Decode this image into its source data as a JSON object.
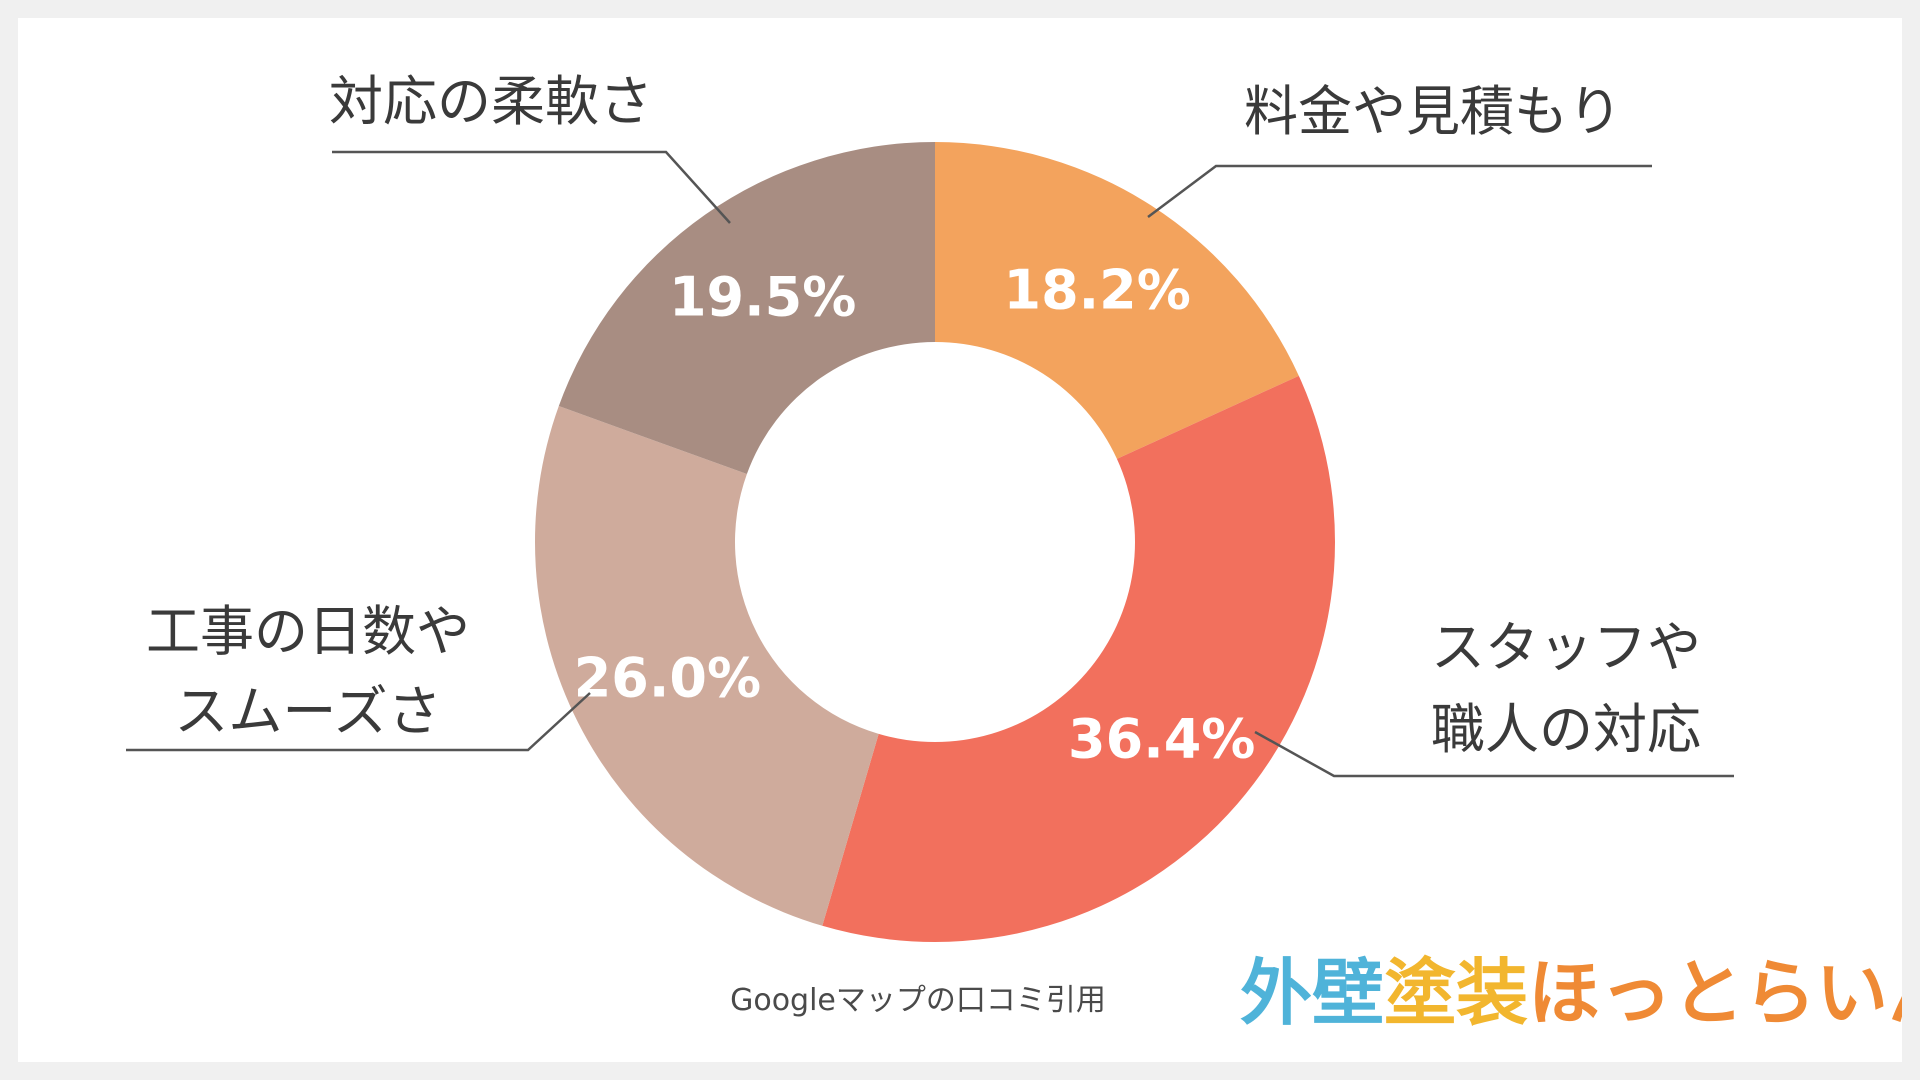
{
  "chart_data": {
    "type": "pie",
    "variant": "donut",
    "categories": [
      "料金や見積もり",
      "スタッフや職人の対応",
      "工事の日数やスムーズさ",
      "対応の柔軟さ"
    ],
    "label_lines": [
      [
        "料金や見積もり"
      ],
      [
        "スタッフや",
        "職人の対応"
      ],
      [
        "工事の日数や",
        "スムーズさ"
      ],
      [
        "対応の柔軟さ"
      ]
    ],
    "values": [
      18.2,
      36.4,
      26.0,
      19.5
    ],
    "value_labels": [
      "18.2%",
      "36.4%",
      "26.0%",
      "19.5%"
    ],
    "colors": [
      "#f3a35d",
      "#f2705d",
      "#cfab9c",
      "#a88d82"
    ],
    "start": "12 o'clock",
    "direction": "clockwise",
    "legend": "none"
  },
  "source_note": "Googleマップの口コミ引用",
  "logo": {
    "parts": [
      {
        "text": "外壁",
        "color": "#4fb3d9"
      },
      {
        "text": "塗装",
        "color": "#f2b62e"
      },
      {
        "text": "ほっとらいん",
        "color": "#ef8a35"
      }
    ]
  }
}
